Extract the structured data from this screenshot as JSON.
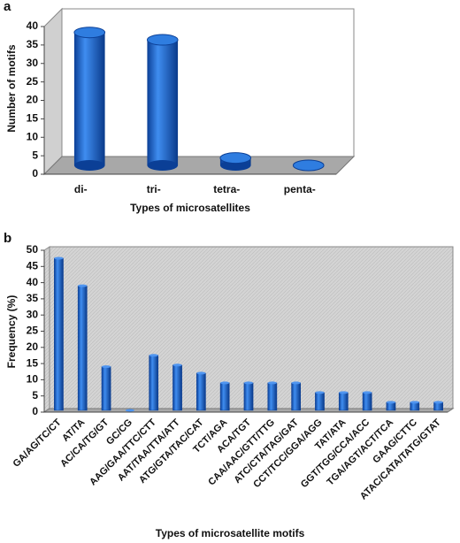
{
  "chart_data": [
    {
      "type": "bar",
      "panel_label": "a",
      "y_label": "Number of motifs",
      "x_label": "Types of microsatellites",
      "categories": [
        "di-",
        "tri-",
        "tetra-",
        "penta-"
      ],
      "values": [
        36,
        34,
        2,
        0
      ],
      "color": "#1a5fc8",
      "ylim": [
        0,
        40
      ],
      "yticks": [
        0,
        5,
        10,
        15,
        20,
        25,
        30,
        35,
        40
      ],
      "grid": false
    },
    {
      "type": "bar",
      "panel_label": "b",
      "y_label": "Frequency (%)",
      "x_label": "Types of microsatellite motifs",
      "categories": [
        "GA/AG/TC/CT",
        "AT/TA",
        "AC/CA/TG/GT",
        "GC/CG",
        "AAG/GAA/TTC/CTT",
        "AAT/TAA/TTA/ATT",
        "ATG/GTA/TAC/CAT",
        "TCT/AGA",
        "ACA/TGT",
        "CAA/AAC/GTT/TTG",
        "ATC/CTA/TAG/GAT",
        "CCT/TCC/GGA/AGG",
        "TAT/ATA",
        "GGT/TGG/CCA/ACC",
        "TGA/AGT/ACT/TCA",
        "GAAG/CTTC",
        "ATAC/CATA/TATG/GTAT"
      ],
      "values": [
        47,
        38.5,
        13.5,
        0,
        17,
        14,
        11.5,
        8.5,
        8.5,
        8.5,
        8.5,
        5.5,
        5.5,
        5.5,
        2.5,
        2.5,
        2.5
      ],
      "color": "#1a5fc8",
      "ylim": [
        0,
        50
      ],
      "yticks": [
        0,
        5,
        10,
        15,
        20,
        25,
        30,
        35,
        40,
        45,
        50
      ],
      "grid": false
    }
  ]
}
